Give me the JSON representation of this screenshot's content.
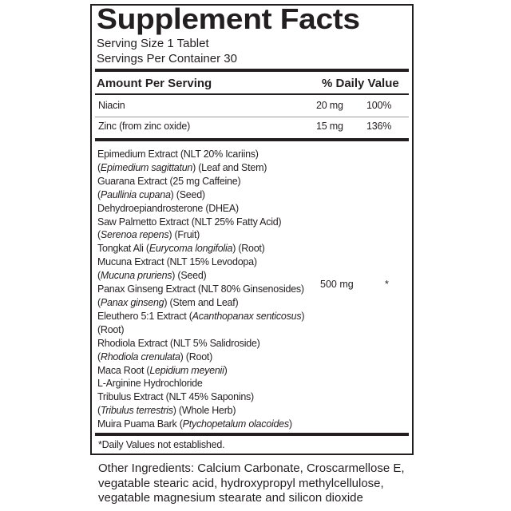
{
  "title": "Supplement Facts",
  "serving_size": "Serving Size 1 Tablet",
  "servings_per_container": "Servings Per Container 30",
  "header": {
    "amount": "Amount Per Serving",
    "dv": "% Daily Value"
  },
  "nutrients": [
    {
      "name": "Niacin",
      "amount": "20 mg",
      "dv": "100%"
    },
    {
      "name": "Zinc (from zinc oxide)",
      "amount": "15 mg",
      "dv": "136%"
    }
  ],
  "blend": {
    "amount": "500 mg",
    "dv": "*",
    "lines": [
      [
        {
          "t": "Epimedium Extract (NLT 20% Icariins)"
        }
      ],
      [
        {
          "t": "("
        },
        {
          "t": "Epimedium sagittatun",
          "i": true
        },
        {
          "t": ") (Leaf and Stem)"
        }
      ],
      [
        {
          "t": "Guarana Extract (25 mg Caffeine)"
        }
      ],
      [
        {
          "t": "("
        },
        {
          "t": "Paullinia cupana",
          "i": true
        },
        {
          "t": ")  (Seed)"
        }
      ],
      [
        {
          "t": "Dehydroepiandrosterone (DHEA)"
        }
      ],
      [
        {
          "t": "Saw Palmetto Extract (NLT 25% Fatty Acid)"
        }
      ],
      [
        {
          "t": "("
        },
        {
          "t": "Serenoa repens",
          "i": true
        },
        {
          "t": ") (Fruit)"
        }
      ],
      [
        {
          "t": "Tongkat Ali ("
        },
        {
          "t": "Eurycoma longifolia",
          "i": true
        },
        {
          "t": ") (Root)"
        }
      ],
      [
        {
          "t": "Mucuna Extract (NLT 15% Levodopa)"
        }
      ],
      [
        {
          "t": "("
        },
        {
          "t": "Mucuna pruriens",
          "i": true
        },
        {
          "t": ") (Seed)"
        }
      ],
      [
        {
          "t": "Panax Ginseng Extract (NLT 80% Ginsenosides)"
        }
      ],
      [
        {
          "t": "("
        },
        {
          "t": "Panax ginseng",
          "i": true
        },
        {
          "t": ") (Stem and Leaf)"
        }
      ],
      [
        {
          "t": "Eleuthero 5:1 Extract ("
        },
        {
          "t": "Acanthopanax senticosus",
          "i": true
        },
        {
          "t": ")"
        }
      ],
      [
        {
          "t": "(Root)"
        }
      ],
      [
        {
          "t": "Rhodiola Extract (NLT 5% Salidroside)"
        }
      ],
      [
        {
          "t": "("
        },
        {
          "t": "Rhodiola crenulata",
          "i": true
        },
        {
          "t": ") (Root)"
        }
      ],
      [
        {
          "t": "Maca Root ("
        },
        {
          "t": "Lepidium meyenii",
          "i": true
        },
        {
          "t": ")"
        }
      ],
      [
        {
          "t": "L-Arginine Hydrochloride"
        }
      ],
      [
        {
          "t": "Tribulus Extract (NLT 45% Saponins)"
        }
      ],
      [
        {
          "t": "("
        },
        {
          "t": "Tribulus terrestris",
          "i": true
        },
        {
          "t": ") (Whole Herb)"
        }
      ],
      [
        {
          "t": "Muira Puama Bark ("
        },
        {
          "t": "Ptychopetalum olacoides",
          "i": true
        },
        {
          "t": ")"
        }
      ]
    ]
  },
  "footnote": "*Daily Values not established.",
  "other_ingredients": "Other Ingredients: Calcium Carbonate, Croscarmellose E, vegatable stearic acid, hydroxypropyl methylcellulose, vegatable magnesium stearate and silicon dioxide"
}
